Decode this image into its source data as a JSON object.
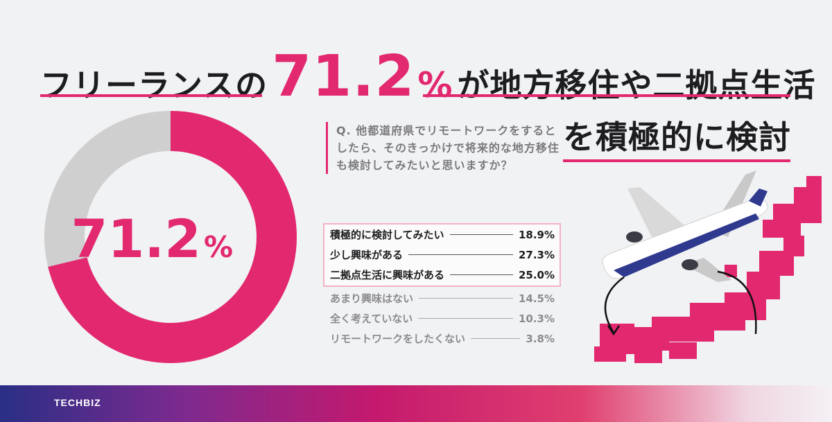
{
  "header": {
    "title_pre": "フリーランスの",
    "title_number": "71.2",
    "title_percent": "%",
    "title_post": "が地方移住や二拠点生活",
    "title_line2": "を積極的に検討"
  },
  "question": "Q. 他都道府県でリモートワークをするとしたら、そのきっかけで将来的な地方移住も検討してみたいと思いますか？",
  "chart_data": {
    "type": "pie",
    "style": "donut",
    "center_value": "71.2",
    "center_unit": "%",
    "slices": [
      {
        "value": 71.2,
        "color": "#e2286f"
      },
      {
        "value": 28.8,
        "color": "#cfcfcf"
      }
    ],
    "answers": [
      {
        "label": "積極的に検討してみたい",
        "value": "18.9%",
        "highlight": true
      },
      {
        "label": "少し興味がある",
        "value": "27.3%",
        "highlight": true
      },
      {
        "label": "二拠点生活に興味がある",
        "value": "25.0%",
        "highlight": true
      },
      {
        "label": "あまり興味はない",
        "value": "14.5%",
        "highlight": false
      },
      {
        "label": "全く考えていない",
        "value": "10.3%",
        "highlight": false
      },
      {
        "label": "リモートワークをしたくない",
        "value": "3.8%",
        "highlight": false
      }
    ]
  },
  "colors": {
    "accent": "#e2286f",
    "muted": "#cfcfcf",
    "background": "#f1f2f4"
  },
  "footer": {
    "brand": "TECHBIZ"
  }
}
